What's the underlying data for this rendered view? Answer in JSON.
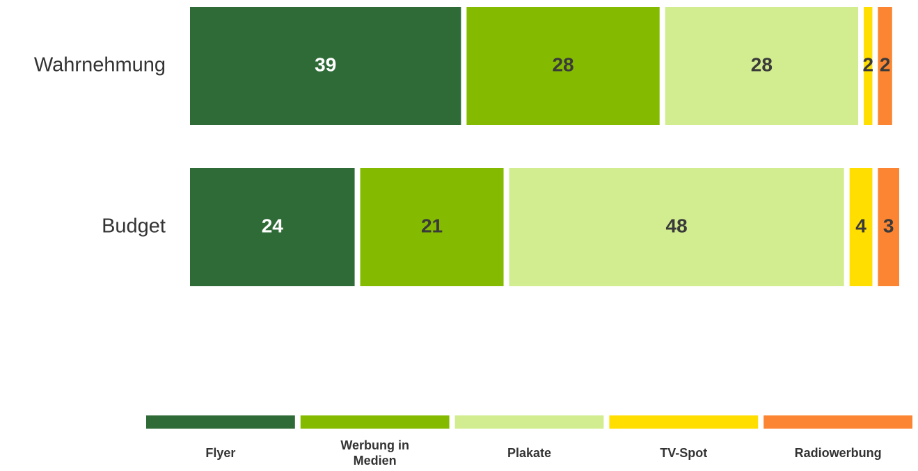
{
  "chart_data": {
    "type": "stacked_bar_horizontal",
    "categories": [
      "Wahrnehmung",
      "Budget"
    ],
    "series": [
      {
        "name": "Flyer",
        "color": "#2e6b37",
        "values": [
          39,
          24
        ]
      },
      {
        "name": "Werbung in Medien",
        "color": "#84bb00",
        "values": [
          28,
          21
        ]
      },
      {
        "name": "Plakate",
        "color": "#d1ed8f",
        "values": [
          28,
          48
        ]
      },
      {
        "name": "TV-Spot",
        "color": "#ffde00",
        "values": [
          2,
          4
        ]
      },
      {
        "name": "Radiowerbung",
        "color": "#fb8532",
        "values": [
          2,
          3
        ]
      }
    ],
    "xlim": [
      0,
      100
    ],
    "legend": "bottom"
  }
}
